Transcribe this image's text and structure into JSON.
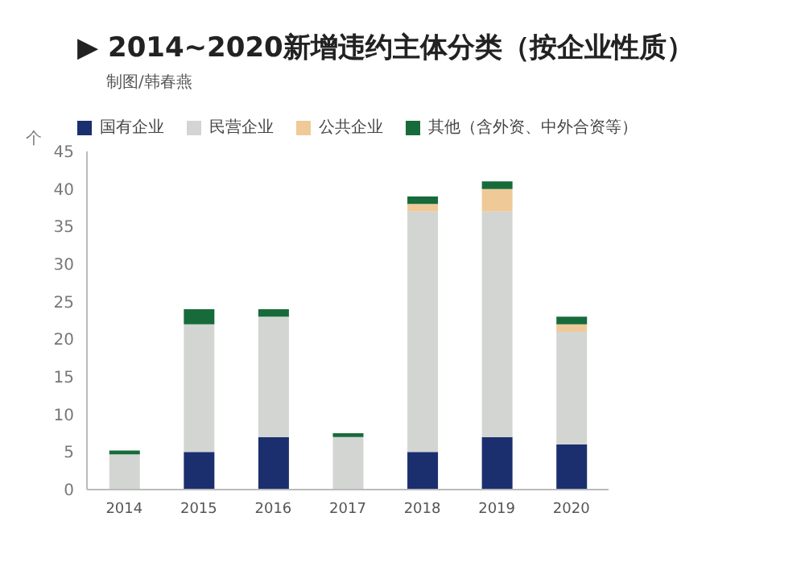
{
  "chart_data": {
    "type": "bar",
    "title": "▶ 2014~2020新增违约主体分类（按企业性质）",
    "subtitle": "制图/韩春燕",
    "ylabel": "个",
    "categories": [
      "2014",
      "2015",
      "2016",
      "2017",
      "2018",
      "2019",
      "2020"
    ],
    "stacked": true,
    "series": [
      {
        "name": "国有企业",
        "color": "#1b2f6e",
        "values": [
          0,
          5,
          7,
          0,
          5,
          7,
          6
        ]
      },
      {
        "name": "民营企业",
        "color": "#d3d5d3",
        "values": [
          4.7,
          17,
          16,
          7,
          32,
          30,
          15
        ]
      },
      {
        "name": "公共企业",
        "color": "#f0c999",
        "values": [
          0,
          0,
          0,
          0,
          1,
          3,
          1
        ]
      },
      {
        "name": "其他（含外资、中外合资等）",
        "color": "#176b3a",
        "values": [
          0.5,
          2,
          1,
          0.5,
          1,
          1,
          1
        ]
      }
    ],
    "ylim": [
      0,
      45
    ],
    "yticks": [
      0,
      5,
      10,
      15,
      20,
      25,
      30,
      35,
      40,
      45
    ],
    "grid": false,
    "legend": "top left"
  }
}
